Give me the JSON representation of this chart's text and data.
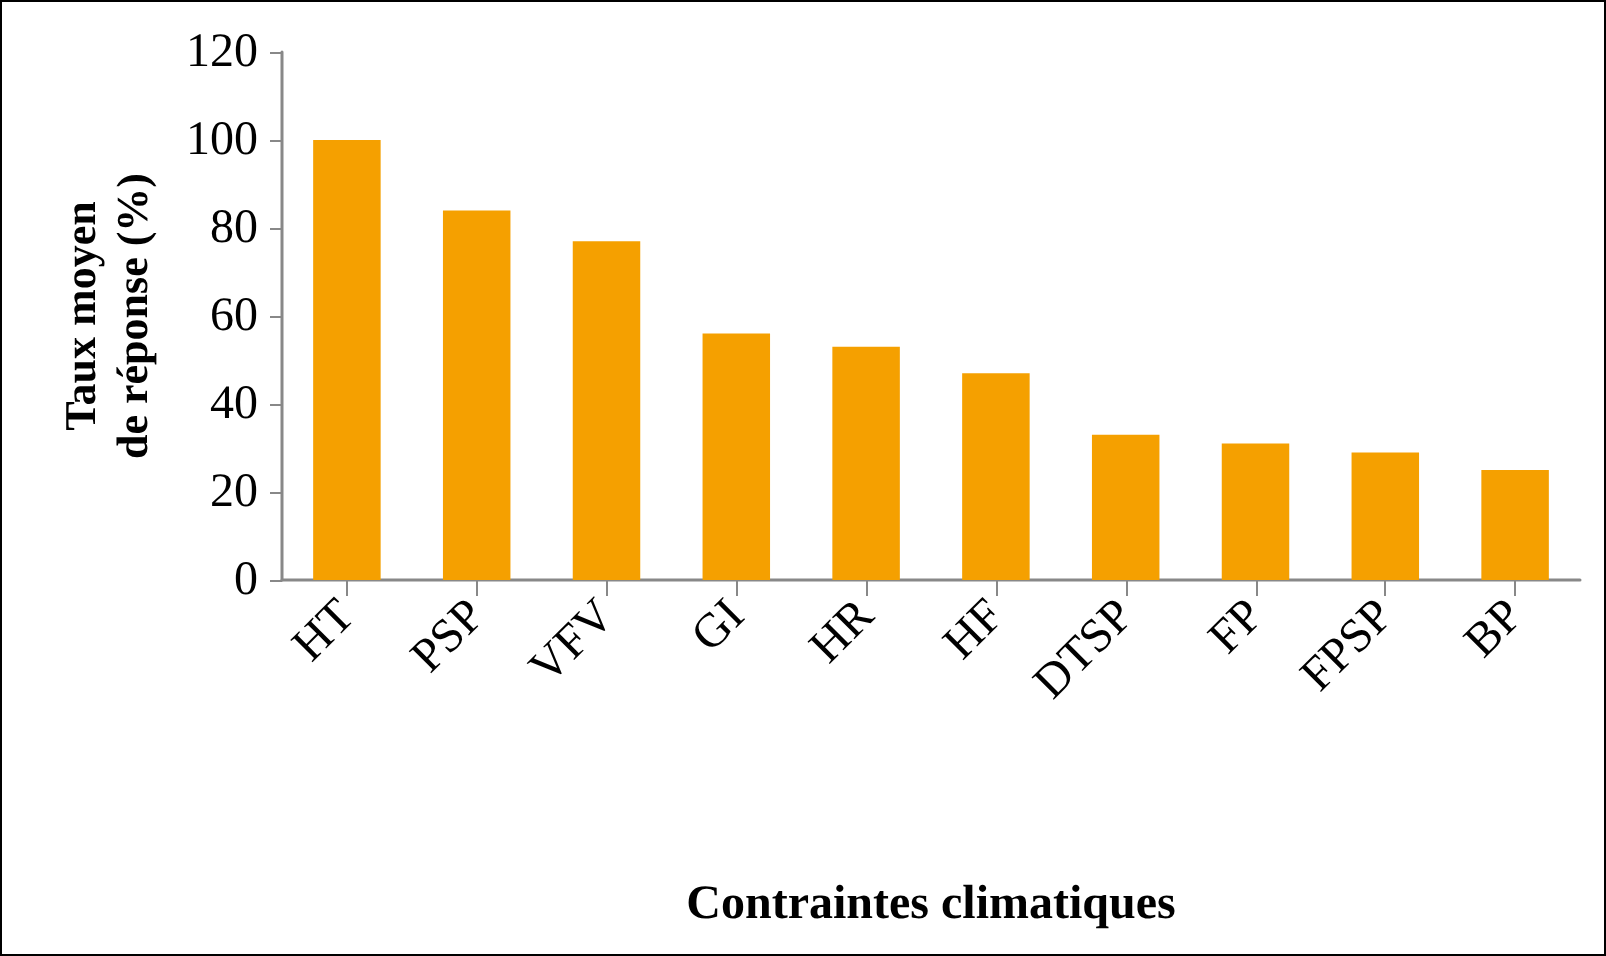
{
  "chart_data": {
    "type": "bar",
    "xlabel": "Contraintes climatiques",
    "ylabel": "Taux moyen\nde réponse (%)",
    "categories": [
      "HT",
      "PSP",
      "VFV",
      "GI",
      "HR",
      "HF",
      "DTSP",
      "FP",
      "FPSP",
      "BP"
    ],
    "values": [
      100,
      84,
      77,
      56,
      53,
      47,
      33,
      31,
      29,
      25
    ],
    "color": "#f5a000",
    "ylim": [
      0,
      120
    ],
    "yticks": [
      0,
      20,
      40,
      60,
      80,
      100,
      120
    ],
    "grid": false
  }
}
